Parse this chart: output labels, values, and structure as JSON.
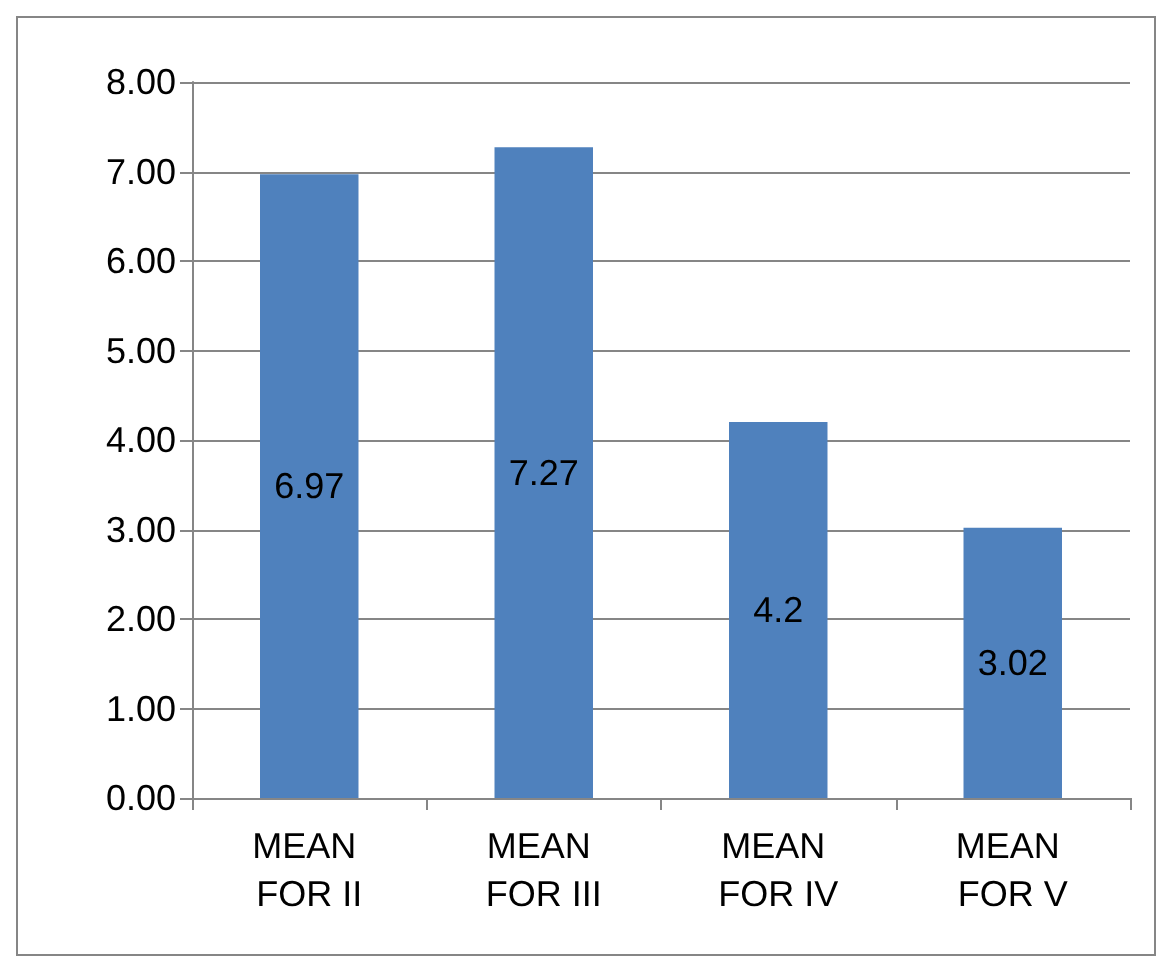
{
  "chart_data": {
    "type": "bar",
    "categories": [
      "MEAN FOR II",
      "MEAN FOR III",
      "MEAN FOR IV",
      "MEAN FOR V"
    ],
    "values": [
      6.97,
      7.27,
      4.2,
      3.02
    ],
    "color": "#4f81bd",
    "data_labels": true,
    "ylim": [
      0,
      8
    ],
    "yticks": [
      {
        "value": 0,
        "label": "0.00"
      },
      {
        "value": 1,
        "label": "1.00"
      },
      {
        "value": 2,
        "label": "2.00"
      },
      {
        "value": 3,
        "label": "3.00"
      },
      {
        "value": 4,
        "label": "4.00"
      },
      {
        "value": 5,
        "label": "5.00"
      },
      {
        "value": 6,
        "label": "6.00"
      },
      {
        "value": 7,
        "label": "7.00"
      },
      {
        "value": 8,
        "label": "8.00"
      }
    ],
    "grid": "y"
  }
}
